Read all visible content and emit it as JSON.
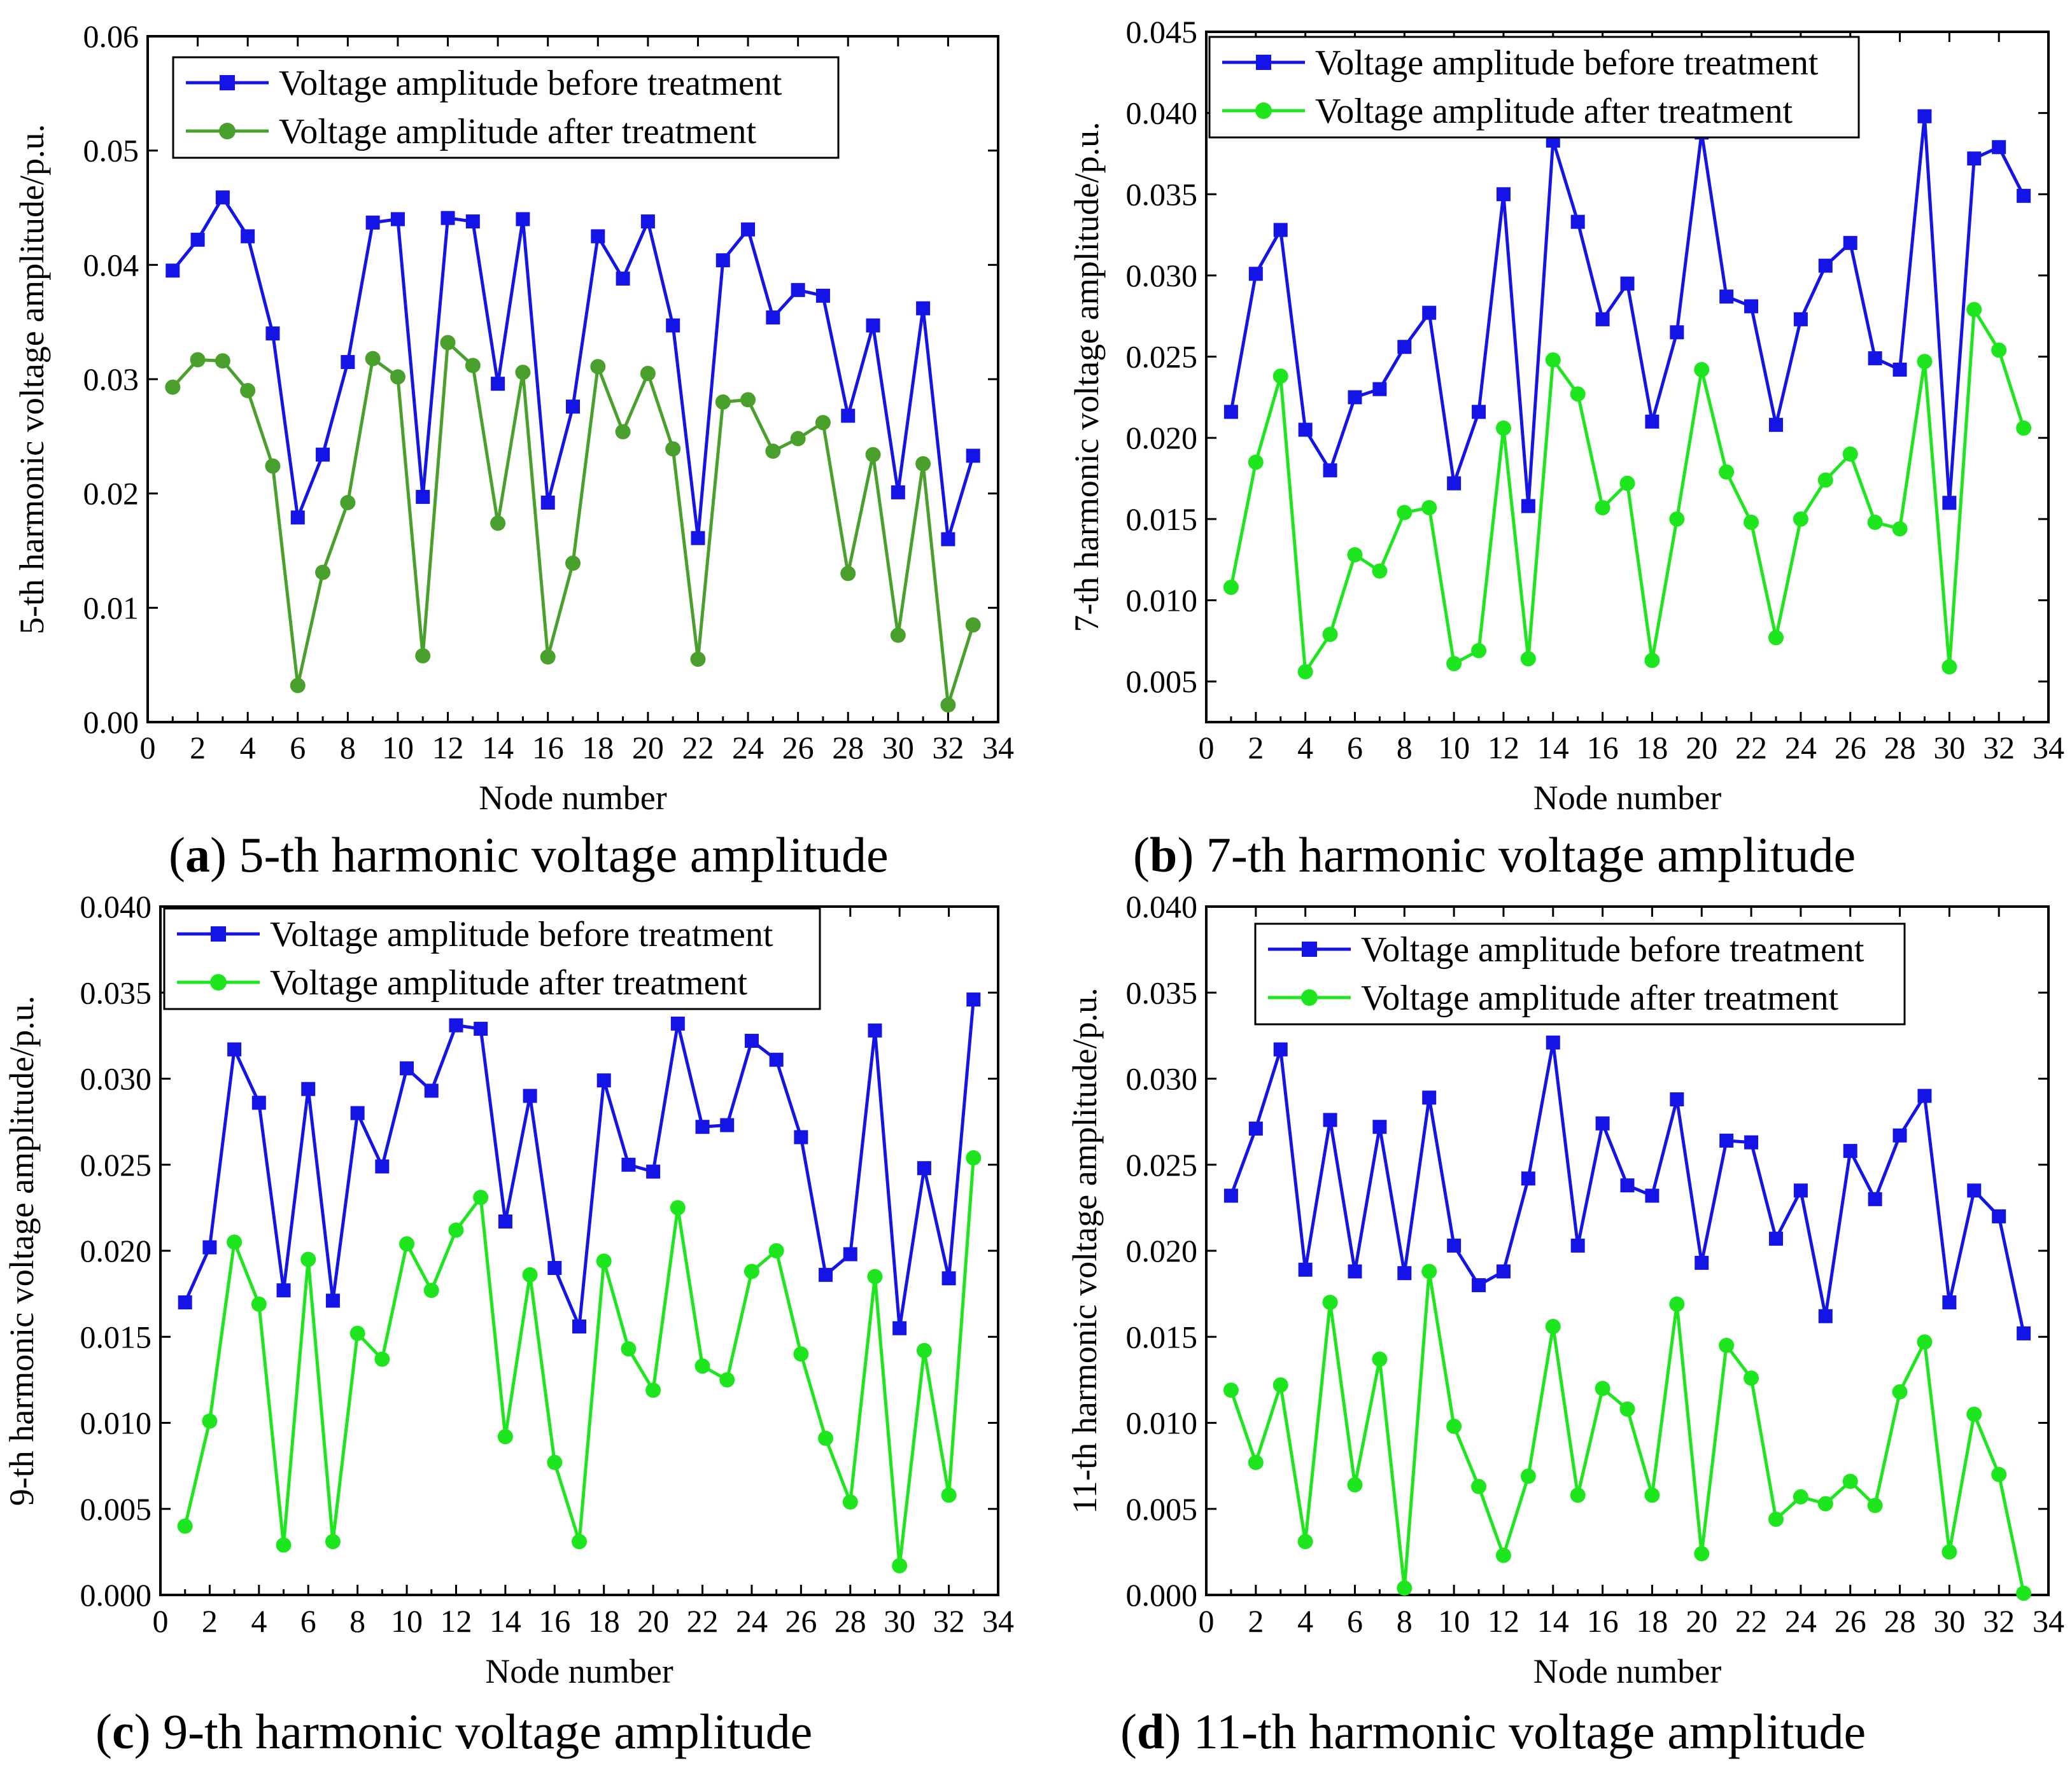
{
  "colors": {
    "before": "#1414e6",
    "after_a": "#4aa02c",
    "after_green": "#1ee61e"
  },
  "chart_data": [
    {
      "id": "a",
      "type": "line",
      "caption": {
        "letter": "a",
        "text": " 5-th harmonic voltage amplitude"
      },
      "xlabel": "Node number",
      "ylabel": "5-th harmonic voltage amplitude/p.u.",
      "xlim": [
        0,
        34
      ],
      "ylim": [
        0,
        0.06
      ],
      "xticks": [
        "0",
        "2",
        "4",
        "6",
        "8",
        "10",
        "12",
        "14",
        "16",
        "18",
        "20",
        "22",
        "24",
        "26",
        "28",
        "30",
        "32",
        "34"
      ],
      "yticks": [
        "0.00",
        "0.01",
        "0.02",
        "0.03",
        "0.04",
        "0.05",
        "0.06"
      ],
      "legend_position": "top-left",
      "x": [
        1,
        2,
        3,
        4,
        5,
        6,
        7,
        8,
        9,
        10,
        11,
        12,
        13,
        14,
        15,
        16,
        17,
        18,
        19,
        20,
        21,
        22,
        23,
        24,
        25,
        26,
        27,
        28,
        29,
        30,
        31,
        32,
        33
      ],
      "series": [
        {
          "name": "Voltage amplitude before treatment",
          "marker": "square",
          "color_key": "before",
          "values": [
            0.0395,
            0.0422,
            0.0459,
            0.0425,
            0.034,
            0.0179,
            0.0234,
            0.0315,
            0.0437,
            0.044,
            0.0197,
            0.0441,
            0.0438,
            0.0296,
            0.044,
            0.0192,
            0.0276,
            0.0425,
            0.0388,
            0.0438,
            0.0347,
            0.0161,
            0.0404,
            0.0431,
            0.0354,
            0.0378,
            0.0373,
            0.0268,
            0.0347,
            0.0201,
            0.0362,
            0.016,
            0.0233
          ]
        },
        {
          "name": "Voltage amplitude after treatment",
          "marker": "circle",
          "color_key": "after_a",
          "values": [
            0.0293,
            0.0317,
            0.0316,
            0.029,
            0.0224,
            0.0032,
            0.0131,
            0.0192,
            0.0318,
            0.0302,
            0.0058,
            0.0332,
            0.0312,
            0.0174,
            0.0306,
            0.0057,
            0.0139,
            0.0311,
            0.0254,
            0.0305,
            0.0239,
            0.0055,
            0.028,
            0.0282,
            0.0237,
            0.0248,
            0.0262,
            0.013,
            0.0234,
            0.0076,
            0.0226,
            0.0015,
            0.0085
          ]
        }
      ]
    },
    {
      "id": "b",
      "type": "line",
      "caption": {
        "letter": "b",
        "text": " 7-th harmonic voltage amplitude"
      },
      "xlabel": "Node number",
      "ylabel": "7-th harmonic voltage amplitude/p.u.",
      "xlim": [
        0,
        34
      ],
      "ylim": [
        0.0025,
        0.045
      ],
      "xticks": [
        "0",
        "2",
        "4",
        "6",
        "8",
        "10",
        "12",
        "14",
        "16",
        "18",
        "20",
        "22",
        "24",
        "26",
        "28",
        "30",
        "32",
        "34"
      ],
      "yticks": [
        "0.005",
        "0.010",
        "0.015",
        "0.020",
        "0.025",
        "0.030",
        "0.035",
        "0.040",
        "0.045"
      ],
      "legend_position": "top-left",
      "x": [
        1,
        2,
        3,
        4,
        5,
        6,
        7,
        8,
        9,
        10,
        11,
        12,
        13,
        14,
        15,
        16,
        17,
        18,
        19,
        20,
        21,
        22,
        23,
        24,
        25,
        26,
        27,
        28,
        29,
        30,
        31,
        32,
        33
      ],
      "series": [
        {
          "name": "Voltage amplitude before treatment",
          "marker": "square",
          "color_key": "before",
          "values": [
            0.0216,
            0.0301,
            0.0328,
            0.0205,
            0.018,
            0.0225,
            0.023,
            0.0256,
            0.0277,
            0.0172,
            0.0216,
            0.035,
            0.0158,
            0.0383,
            0.0333,
            0.0273,
            0.0295,
            0.021,
            0.0265,
            0.0388,
            0.0287,
            0.0281,
            0.0208,
            0.0273,
            0.0306,
            0.032,
            0.0249,
            0.0242,
            0.0398,
            0.016,
            0.0372,
            0.0379,
            0.0349
          ]
        },
        {
          "name": "Voltage amplitude after treatment",
          "marker": "circle",
          "color_key": "after_green",
          "values": [
            0.0108,
            0.0185,
            0.0238,
            0.0056,
            0.0079,
            0.0128,
            0.0118,
            0.0154,
            0.0157,
            0.0061,
            0.0069,
            0.0206,
            0.0064,
            0.0248,
            0.0227,
            0.0157,
            0.0172,
            0.0063,
            0.015,
            0.0242,
            0.0179,
            0.0148,
            0.0077,
            0.015,
            0.0174,
            0.019,
            0.0148,
            0.0144,
            0.0247,
            0.0059,
            0.0279,
            0.0254,
            0.0206
          ]
        }
      ]
    },
    {
      "id": "c",
      "type": "line",
      "caption": {
        "letter": "c",
        "text": " 9-th harmonic voltage amplitude"
      },
      "xlabel": "Node number",
      "ylabel": "9-th harmonic voltage amplitude/p.u.",
      "xlim": [
        0,
        34
      ],
      "ylim": [
        0,
        0.04
      ],
      "xticks": [
        "0",
        "2",
        "4",
        "6",
        "8",
        "10",
        "12",
        "14",
        "16",
        "18",
        "20",
        "22",
        "24",
        "26",
        "28",
        "30",
        "32",
        "34"
      ],
      "yticks": [
        "0.000",
        "0.005",
        "0.010",
        "0.015",
        "0.020",
        "0.025",
        "0.030",
        "0.035",
        "0.040"
      ],
      "legend_position": "top-left",
      "x": [
        1,
        2,
        3,
        4,
        5,
        6,
        7,
        8,
        9,
        10,
        11,
        12,
        13,
        14,
        15,
        16,
        17,
        18,
        19,
        20,
        21,
        22,
        23,
        24,
        25,
        26,
        27,
        28,
        29,
        30,
        31,
        32,
        33
      ],
      "series": [
        {
          "name": "Voltage amplitude before treatment",
          "marker": "square",
          "color_key": "before",
          "values": [
            0.017,
            0.0202,
            0.0317,
            0.0286,
            0.0177,
            0.0294,
            0.0171,
            0.028,
            0.0249,
            0.0306,
            0.0293,
            0.0331,
            0.0329,
            0.0217,
            0.029,
            0.019,
            0.0156,
            0.0299,
            0.025,
            0.0246,
            0.0332,
            0.0272,
            0.0273,
            0.0322,
            0.0311,
            0.0266,
            0.0186,
            0.0198,
            0.0328,
            0.0155,
            0.0248,
            0.0184,
            0.0346
          ]
        },
        {
          "name": "Voltage amplitude after treatment",
          "marker": "circle",
          "color_key": "after_green",
          "values": [
            0.004,
            0.0101,
            0.0205,
            0.0169,
            0.0029,
            0.0195,
            0.0031,
            0.0152,
            0.0137,
            0.0204,
            0.0177,
            0.0212,
            0.0231,
            0.0092,
            0.0186,
            0.0077,
            0.0031,
            0.0194,
            0.0143,
            0.0119,
            0.0225,
            0.0133,
            0.0125,
            0.0188,
            0.02,
            0.014,
            0.0091,
            0.0054,
            0.0185,
            0.0017,
            0.0142,
            0.0058,
            0.0254
          ]
        }
      ]
    },
    {
      "id": "d",
      "type": "line",
      "caption": {
        "letter": "d",
        "text": " 11-th harmonic voltage amplitude"
      },
      "xlabel": "Node number",
      "ylabel": "11-th harmonic voltage amplitude/p.u.",
      "xlim": [
        0,
        34
      ],
      "ylim": [
        0,
        0.04
      ],
      "xticks": [
        "0",
        "2",
        "4",
        "6",
        "8",
        "10",
        "12",
        "14",
        "16",
        "18",
        "20",
        "22",
        "24",
        "26",
        "28",
        "30",
        "32",
        "34"
      ],
      "yticks": [
        "0.000",
        "0.005",
        "0.010",
        "0.015",
        "0.020",
        "0.025",
        "0.030",
        "0.035",
        "0.040"
      ],
      "legend_position": "top-left",
      "x": [
        1,
        2,
        3,
        4,
        5,
        6,
        7,
        8,
        9,
        10,
        11,
        12,
        13,
        14,
        15,
        16,
        17,
        18,
        19,
        20,
        21,
        22,
        23,
        24,
        25,
        26,
        27,
        28,
        29,
        30,
        31,
        32,
        33
      ],
      "series": [
        {
          "name": "Voltage amplitude before treatment",
          "marker": "square",
          "color_key": "before",
          "values": [
            0.0232,
            0.0271,
            0.0317,
            0.0189,
            0.0276,
            0.0188,
            0.0272,
            0.0187,
            0.0289,
            0.0203,
            0.018,
            0.0188,
            0.0242,
            0.0321,
            0.0203,
            0.0274,
            0.0238,
            0.0232,
            0.0288,
            0.0193,
            0.0264,
            0.0263,
            0.0207,
            0.0235,
            0.0162,
            0.0258,
            0.023,
            0.0267,
            0.029,
            0.017,
            0.0235,
            0.022,
            0.0152
          ]
        },
        {
          "name": "Voltage amplitude after treatment",
          "marker": "circle",
          "color_key": "after_green",
          "values": [
            0.0119,
            0.0077,
            0.0122,
            0.0031,
            0.017,
            0.0064,
            0.0137,
            0.0004,
            0.0188,
            0.0098,
            0.0063,
            0.0023,
            0.0069,
            0.0156,
            0.0058,
            0.012,
            0.0108,
            0.0058,
            0.0169,
            0.0024,
            0.0145,
            0.0126,
            0.0044,
            0.0057,
            0.0053,
            0.0066,
            0.0052,
            0.0118,
            0.0147,
            0.0025,
            0.0105,
            0.007,
            0.0001
          ]
        }
      ]
    }
  ]
}
